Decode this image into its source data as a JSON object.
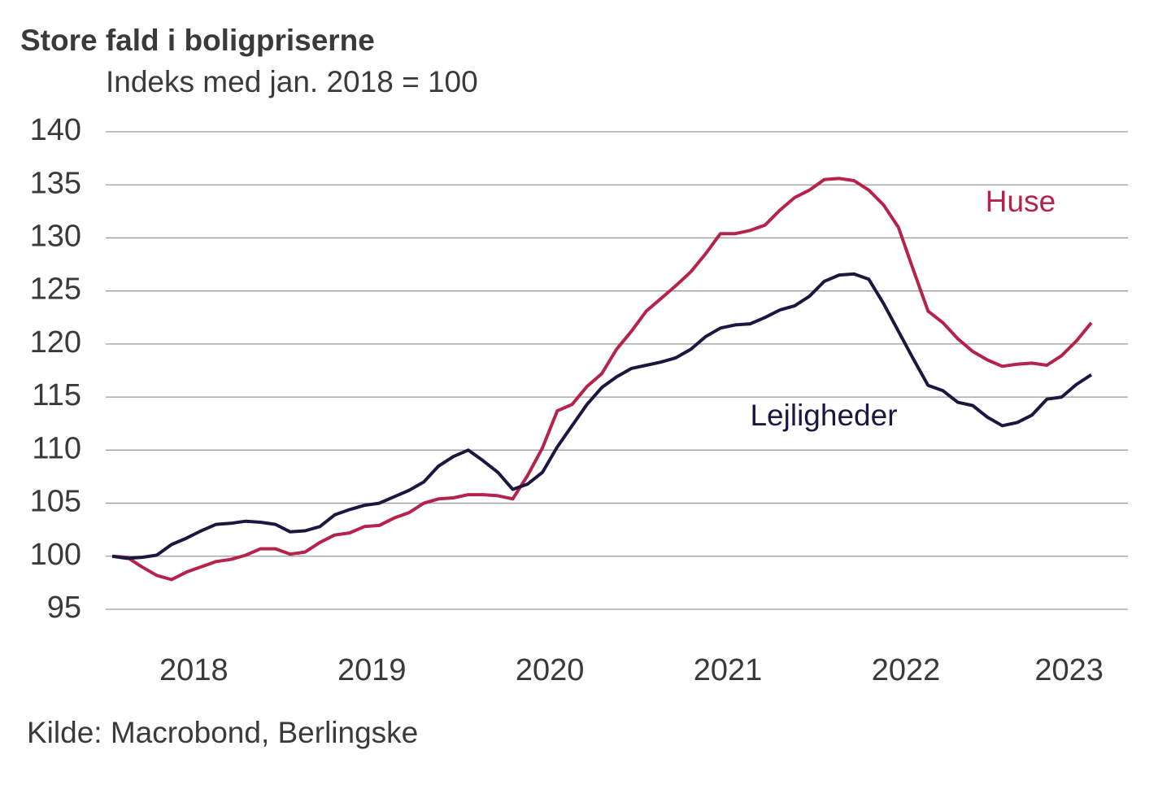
{
  "chart_data": {
    "type": "line",
    "title": "Store fald i boligpriserne",
    "subtitle": "Indeks med jan. 2018 = 100",
    "source": "Kilde: Macrobond, Berlingske",
    "categories": [
      null,
      null,
      null,
      null,
      null,
      "2018",
      null,
      null,
      null,
      null,
      null,
      null,
      null,
      null,
      null,
      null,
      null,
      "2019",
      null,
      null,
      null,
      null,
      null,
      null,
      null,
      null,
      null,
      null,
      null,
      "2020",
      null,
      null,
      null,
      null,
      null,
      null,
      null,
      null,
      null,
      null,
      null,
      "2021",
      null,
      null,
      null,
      null,
      null,
      null,
      null,
      null,
      null,
      null,
      null,
      "2022",
      null,
      null,
      null,
      null,
      null,
      null,
      null,
      null,
      null,
      null,
      "2023",
      null,
      null
    ],
    "series": [
      {
        "name": "Huse",
        "color": "#b5234a",
        "values": [
          100,
          99.9,
          99.0,
          98.2,
          97.8,
          98.5,
          99.0,
          99.5,
          99.7,
          100.1,
          100.7,
          100.7,
          100.2,
          100.4,
          101.3,
          102.0,
          102.2,
          102.8,
          102.9,
          103.6,
          104.1,
          105.0,
          105.4,
          105.5,
          105.8,
          105.8,
          105.7,
          105.4,
          107.6,
          110.2,
          113.7,
          114.3,
          116.0,
          117.2,
          119.5,
          121.2,
          123.1,
          124.3,
          125.5,
          126.8,
          128.5,
          130.4,
          130.4,
          130.7,
          131.2,
          132.6,
          133.8,
          134.5,
          135.5,
          135.6,
          135.4,
          134.5,
          133.1,
          131.0,
          127.0,
          123.1,
          122.0,
          120.5,
          119.3,
          118.5,
          117.9,
          118.1,
          118.2,
          118.0,
          118.9,
          120.3,
          122.0
        ]
      },
      {
        "name": "Lejligheder",
        "color": "#1c1740",
        "values": [
          100,
          99.8,
          99.9,
          100.1,
          101.1,
          101.7,
          102.4,
          103.0,
          103.1,
          103.3,
          103.2,
          103.0,
          102.3,
          102.4,
          102.8,
          103.9,
          104.4,
          104.8,
          105.0,
          105.6,
          106.2,
          107.0,
          108.5,
          109.4,
          110.0,
          109.0,
          107.9,
          106.3,
          106.8,
          107.9,
          110.3,
          112.3,
          114.3,
          115.9,
          116.9,
          117.7,
          118.0,
          118.3,
          118.7,
          119.5,
          120.7,
          121.5,
          121.8,
          121.9,
          122.5,
          123.2,
          123.6,
          124.5,
          125.9,
          126.5,
          126.6,
          126.1,
          123.8,
          121.2,
          118.6,
          116.1,
          115.6,
          114.5,
          114.2,
          113.1,
          112.3,
          112.6,
          113.3,
          114.8,
          115.0,
          116.2,
          117.1
        ]
      }
    ],
    "ylim": [
      95,
      140
    ],
    "yticks": [
      95,
      100,
      105,
      110,
      115,
      120,
      125,
      130,
      135,
      140
    ],
    "grid": true
  }
}
